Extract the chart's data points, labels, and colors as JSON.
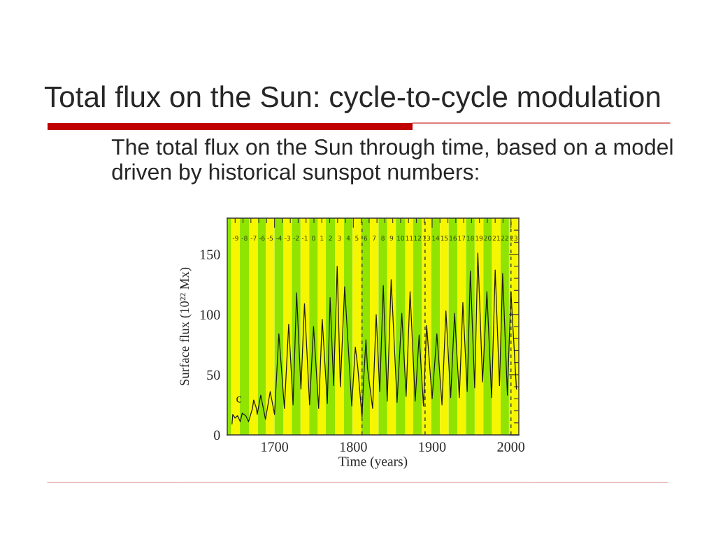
{
  "chart_data": {
    "type": "line",
    "title": "Total flux on the Sun: cycle-to-cycle modulation",
    "subtitle": "The total flux on the Sun through time, based on a model driven by historical sunspot numbers:",
    "xlabel": "Time (years)",
    "ylabel": "Surface flux (10²² Mx)",
    "annotations": [
      "c"
    ],
    "x": [
      1646,
      1647,
      1650,
      1653,
      1656.5,
      1659,
      1663.5,
      1667,
      1672,
      1673.5,
      1677,
      1678,
      1682.5,
      1688.5,
      1694.5,
      1700,
      1705.5,
      1712.5,
      1718,
      1723.5,
      1728,
      1733.5,
      1738,
      1744.5,
      1749.5,
      1756,
      1760.5,
      1767,
      1770.5,
      1775,
      1779.5,
      1783.5,
      1789,
      1798,
      1802.5,
      1805.5,
      1811,
      1813,
      1816,
      1818,
      1824.5,
      1829,
      1833.5,
      1838,
      1843,
      1848,
      1855.5,
      1861.5,
      1867,
      1872,
      1878.5,
      1883.5,
      1889,
      1893,
      1900,
      1906,
      1912.5,
      1917.5,
      1923.5,
      1928.5,
      1934.5,
      1939,
      1944.5,
      1948.5,
      1954,
      1958,
      1964,
      1969.5,
      1975.5,
      1980,
      1985.5,
      1989.5,
      1995.5,
      2000,
      2007
    ],
    "series": [
      {
        "color": "#1a1a1a",
        "values": [
          9,
          17,
          14,
          16,
          11,
          18,
          16,
          11,
          22,
          29,
          22,
          17,
          33,
          13,
          36,
          17,
          84,
          22,
          92,
          25,
          118,
          38,
          109,
          25,
          90,
          22,
          96,
          26,
          114,
          41,
          140,
          40,
          123,
          24,
          73,
          57,
          15,
          45,
          79,
          55,
          22,
          100,
          36,
          124,
          28,
          129,
          27,
          101,
          32,
          119,
          28,
          83,
          24,
          91,
          30,
          84,
          25,
          103,
          31,
          101,
          31,
          110,
          36,
          136,
          39,
          151,
          44,
          119,
          31,
          137,
          41,
          134,
          33,
          119,
          38
        ]
      }
    ],
    "xlim": [
      1640,
      2010
    ],
    "ylim": [
      0,
      180
    ],
    "xticks": [
      {
        "value": 1650,
        "label": null
      },
      {
        "value": 1660,
        "label": null
      },
      {
        "value": 1670,
        "label": null
      },
      {
        "value": 1680,
        "label": null
      },
      {
        "value": 1690,
        "label": null
      },
      1700,
      {
        "value": 1710,
        "label": null
      },
      {
        "value": 1720,
        "label": null
      },
      {
        "value": 1730,
        "label": null
      },
      {
        "value": 1740,
        "label": null
      },
      {
        "value": 1750,
        "label": null
      },
      {
        "value": 1760,
        "label": null
      },
      {
        "value": 1770,
        "label": null
      },
      {
        "value": 1780,
        "label": null
      },
      {
        "value": 1790,
        "label": null
      },
      1800,
      {
        "value": 1810,
        "label": null
      },
      {
        "value": 1820,
        "label": null
      },
      {
        "value": 1830,
        "label": null
      },
      {
        "value": 1840,
        "label": null
      },
      {
        "value": 1850,
        "label": null
      },
      {
        "value": 1860,
        "label": null
      },
      {
        "value": 1870,
        "label": null
      },
      {
        "value": 1880,
        "label": null
      },
      {
        "value": 1890,
        "label": null
      },
      1900,
      {
        "value": 1910,
        "label": null
      },
      {
        "value": 1920,
        "label": null
      },
      {
        "value": 1930,
        "label": null
      },
      {
        "value": 1940,
        "label": null
      },
      {
        "value": 1950,
        "label": null
      },
      {
        "value": 1960,
        "label": null
      },
      {
        "value": 1970,
        "label": null
      },
      {
        "value": 1980,
        "label": null
      },
      {
        "value": 1990,
        "label": null
      },
      2000
    ],
    "yticks": [
      0,
      {
        "value": 10,
        "label": null
      },
      {
        "value": 20,
        "label": null
      },
      {
        "value": 30,
        "label": null
      },
      {
        "value": 40,
        "label": null
      },
      50,
      {
        "value": 60,
        "label": null
      },
      {
        "value": 70,
        "label": null
      },
      {
        "value": 80,
        "label": null
      },
      {
        "value": 90,
        "label": null
      },
      100,
      {
        "value": 110,
        "label": null
      },
      {
        "value": 120,
        "label": null
      },
      {
        "value": 130,
        "label": null
      },
      {
        "value": 140,
        "label": null
      },
      150,
      {
        "value": 160,
        "label": null
      },
      {
        "value": 170,
        "label": null
      }
    ],
    "ref_lines": [
      {
        "axis": "x",
        "value": 1811,
        "line_style": "dashed",
        "color": "#4d5a3a"
      },
      {
        "axis": "x",
        "value": 1891,
        "line_style": "dashed",
        "color": "#4d5a3a"
      },
      {
        "axis": "x",
        "value": 2000,
        "line_style": "dashed",
        "color": "#4d5a3a"
      }
    ],
    "bands": [
      {
        "axis": "x",
        "from": 1640,
        "to": 1645,
        "color": "#90e400"
      },
      {
        "axis": "x",
        "from": 1645,
        "to": 1656,
        "label": "-9",
        "color": "#f6f600"
      },
      {
        "axis": "x",
        "from": 1656,
        "to": 1668,
        "label": "-8",
        "color": "#90e400"
      },
      {
        "axis": "x",
        "from": 1668,
        "to": 1679,
        "label": "-7",
        "color": "#f6f600"
      },
      {
        "axis": "x",
        "from": 1679,
        "to": 1689,
        "label": "-6",
        "color": "#90e400"
      },
      {
        "axis": "x",
        "from": 1689,
        "to": 1700,
        "label": "-5",
        "color": "#f6f600"
      },
      {
        "axis": "x",
        "from": 1700,
        "to": 1711,
        "label": "-4",
        "color": "#90e400"
      },
      {
        "axis": "x",
        "from": 1711,
        "to": 1722,
        "label": "-3",
        "color": "#f6f600"
      },
      {
        "axis": "x",
        "from": 1722,
        "to": 1733,
        "label": "-2",
        "color": "#90e400"
      },
      {
        "axis": "x",
        "from": 1733,
        "to": 1744,
        "label": "-1",
        "color": "#f6f600"
      },
      {
        "axis": "x",
        "from": 1744,
        "to": 1755,
        "label": "0",
        "color": "#90e400"
      },
      {
        "axis": "x",
        "from": 1755,
        "to": 1765,
        "label": "1",
        "color": "#f6f600"
      },
      {
        "axis": "x",
        "from": 1765,
        "to": 1777,
        "label": "2",
        "color": "#90e400"
      },
      {
        "axis": "x",
        "from": 1777,
        "to": 1788,
        "label": "3",
        "color": "#f6f600"
      },
      {
        "axis": "x",
        "from": 1788,
        "to": 1799,
        "label": "4",
        "color": "#90e400"
      },
      {
        "axis": "x",
        "from": 1799,
        "to": 1810,
        "label": "5",
        "color": "#f6f600"
      },
      {
        "axis": "x",
        "from": 1810,
        "to": 1821,
        "label": "6",
        "color": "#90e400"
      },
      {
        "axis": "x",
        "from": 1821,
        "to": 1832,
        "label": "7",
        "color": "#f6f600"
      },
      {
        "axis": "x",
        "from": 1832,
        "to": 1843,
        "label": "8",
        "color": "#90e400"
      },
      {
        "axis": "x",
        "from": 1843,
        "to": 1854,
        "label": "9",
        "color": "#f6f600"
      },
      {
        "axis": "x",
        "from": 1854,
        "to": 1866,
        "label": "10",
        "color": "#90e400"
      },
      {
        "axis": "x",
        "from": 1866,
        "to": 1876,
        "label": "11",
        "color": "#f6f600"
      },
      {
        "axis": "x",
        "from": 1876,
        "to": 1887,
        "label": "12",
        "color": "#90e400"
      },
      {
        "axis": "x",
        "from": 1887,
        "to": 1899,
        "label": "13",
        "color": "#f6f600"
      },
      {
        "axis": "x",
        "from": 1899,
        "to": 1910,
        "label": "14",
        "color": "#90e400"
      },
      {
        "axis": "x",
        "from": 1910,
        "to": 1921,
        "label": "15",
        "color": "#f6f600"
      },
      {
        "axis": "x",
        "from": 1921,
        "to": 1932,
        "label": "16",
        "color": "#90e400"
      },
      {
        "axis": "x",
        "from": 1932,
        "to": 1943,
        "label": "17",
        "color": "#f6f600"
      },
      {
        "axis": "x",
        "from": 1943,
        "to": 1954,
        "label": "18",
        "color": "#90e400"
      },
      {
        "axis": "x",
        "from": 1954,
        "to": 1965,
        "label": "19",
        "color": "#f6f600"
      },
      {
        "axis": "x",
        "from": 1965,
        "to": 1976,
        "label": "20",
        "color": "#90e400"
      },
      {
        "axis": "x",
        "from": 1976,
        "to": 1987,
        "label": "21",
        "color": "#f6f600"
      },
      {
        "axis": "x",
        "from": 1987,
        "to": 1997.5,
        "label": "22",
        "color": "#90e400"
      },
      {
        "axis": "x",
        "from": 1997.5,
        "to": 2010,
        "label": "23",
        "color": "#f6f600"
      }
    ],
    "line_style": "solid"
  }
}
